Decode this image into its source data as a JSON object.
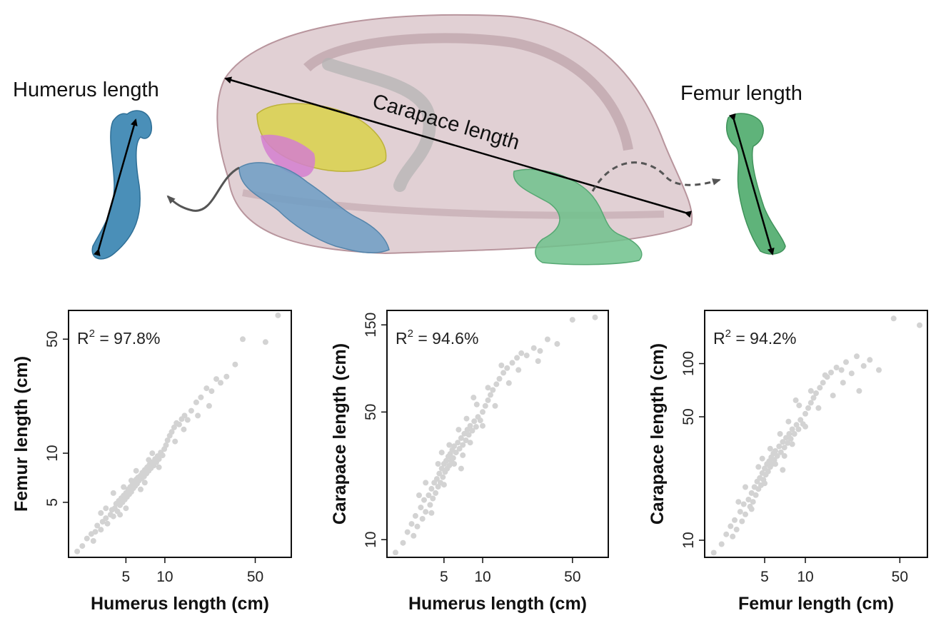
{
  "illustration": {
    "humerus_label": "Humerus length",
    "femur_label": "Femur length",
    "carapace_label": "Carapace length",
    "colors": {
      "carapace": "#c9a9b0",
      "skull": "#d9d24a",
      "forelimb": "#6d9ec4",
      "hindlimb": "#6fc28c",
      "muscle": "#d47fcf"
    }
  },
  "chart_data": [
    {
      "type": "scatter",
      "log_scale": true,
      "r2_prefix": "R",
      "r2_sup": "2",
      "r2_value": " = 97.8%",
      "xlabel": "Humerus length (cm)",
      "ylabel": "Femur length (cm)",
      "xticks": [
        5,
        10,
        50
      ],
      "yticks": [
        5,
        10,
        50
      ],
      "xlim": [
        1.8,
        95
      ],
      "ylim": [
        2.3,
        75
      ],
      "point_color": "#d3d3d3",
      "points": [
        [
          2.1,
          2.5
        ],
        [
          2.3,
          2.7
        ],
        [
          2.5,
          3.0
        ],
        [
          2.7,
          3.2
        ],
        [
          2.9,
          3.3
        ],
        [
          3.0,
          3.6
        ],
        [
          3.2,
          3.4
        ],
        [
          3.3,
          3.8
        ],
        [
          3.5,
          4.0
        ],
        [
          3.6,
          3.7
        ],
        [
          3.8,
          4.2
        ],
        [
          3.9,
          4.5
        ],
        [
          4.0,
          4.1
        ],
        [
          4.1,
          4.6
        ],
        [
          4.2,
          4.9
        ],
        [
          4.3,
          4.4
        ],
        [
          4.4,
          5.1
        ],
        [
          4.5,
          4.8
        ],
        [
          4.6,
          5.3
        ],
        [
          4.7,
          5.0
        ],
        [
          4.8,
          5.5
        ],
        [
          4.9,
          5.2
        ],
        [
          5.0,
          5.7
        ],
        [
          5.1,
          5.4
        ],
        [
          5.2,
          6.0
        ],
        [
          5.3,
          5.6
        ],
        [
          5.4,
          6.2
        ],
        [
          5.5,
          5.8
        ],
        [
          5.6,
          6.4
        ],
        [
          5.7,
          6.1
        ],
        [
          5.8,
          6.6
        ],
        [
          5.9,
          6.3
        ],
        [
          6.0,
          6.9
        ],
        [
          6.1,
          6.5
        ],
        [
          6.2,
          7.1
        ],
        [
          6.3,
          6.8
        ],
        [
          6.5,
          7.3
        ],
        [
          6.6,
          7.0
        ],
        [
          6.7,
          7.6
        ],
        [
          6.9,
          7.2
        ],
        [
          7.0,
          7.9
        ],
        [
          7.2,
          7.5
        ],
        [
          7.3,
          8.2
        ],
        [
          7.5,
          7.8
        ],
        [
          7.6,
          8.5
        ],
        [
          7.8,
          8.1
        ],
        [
          8.0,
          8.8
        ],
        [
          8.2,
          8.4
        ],
        [
          8.4,
          9.2
        ],
        [
          8.6,
          8.8
        ],
        [
          8.8,
          9.6
        ],
        [
          9.0,
          9.2
        ],
        [
          9.3,
          10.1
        ],
        [
          9.6,
          9.7
        ],
        [
          9.9,
          10.6
        ],
        [
          10.2,
          11.2
        ],
        [
          10.5,
          12.0
        ],
        [
          10.9,
          12.8
        ],
        [
          11.3,
          13.5
        ],
        [
          11.8,
          14.4
        ],
        [
          12.3,
          15.3
        ],
        [
          12.9,
          15.0
        ],
        [
          13.5,
          16.2
        ],
        [
          14.2,
          17.0
        ],
        [
          15.0,
          16.0
        ],
        [
          16.0,
          18.2
        ],
        [
          17.5,
          20.5
        ],
        [
          19.0,
          22.0
        ],
        [
          21.0,
          25.0
        ],
        [
          23.0,
          24.0
        ],
        [
          25.0,
          28.5
        ],
        [
          27.0,
          27.0
        ],
        [
          30.0,
          29.5
        ],
        [
          35.0,
          35.0
        ],
        [
          40.0,
          50.0
        ],
        [
          60.0,
          48.0
        ],
        [
          75.0,
          70.0
        ],
        [
          4.0,
          5.7
        ],
        [
          5.0,
          4.6
        ],
        [
          6.0,
          7.8
        ],
        [
          7.0,
          6.6
        ],
        [
          8.0,
          10.0
        ],
        [
          9.0,
          8.2
        ],
        [
          3.5,
          4.6
        ],
        [
          4.5,
          4.2
        ],
        [
          5.5,
          6.8
        ],
        [
          6.5,
          6.0
        ],
        [
          7.5,
          9.1
        ],
        [
          12.0,
          11.8
        ],
        [
          14.0,
          14.0
        ],
        [
          18.0,
          17.0
        ],
        [
          4.8,
          6.2
        ],
        [
          3.2,
          4.3
        ],
        [
          2.8,
          2.9
        ],
        [
          22.0,
          19.5
        ]
      ]
    },
    {
      "type": "scatter",
      "log_scale": true,
      "r2_prefix": "R",
      "r2_sup": "2",
      "r2_value": " = 94.6%",
      "xlabel": "Humerus length (cm)",
      "ylabel": "Carapace length (cm)",
      "xticks": [
        5,
        10,
        50
      ],
      "yticks": [
        10,
        50,
        150
      ],
      "xlim": [
        1.8,
        95
      ],
      "ylim": [
        8,
        180
      ],
      "point_color": "#d3d3d3",
      "points": [
        [
          2.1,
          8.5
        ],
        [
          2.4,
          9.6
        ],
        [
          2.6,
          11.0
        ],
        [
          2.8,
          12.2
        ],
        [
          3.0,
          13.5
        ],
        [
          3.1,
          11.8
        ],
        [
          3.3,
          15.0
        ],
        [
          3.4,
          13.0
        ],
        [
          3.5,
          16.5
        ],
        [
          3.6,
          14.2
        ],
        [
          3.8,
          17.5
        ],
        [
          3.9,
          15.5
        ],
        [
          4.0,
          19.0
        ],
        [
          4.1,
          16.8
        ],
        [
          4.2,
          20.5
        ],
        [
          4.3,
          18.0
        ],
        [
          4.4,
          21.5
        ],
        [
          4.5,
          19.5
        ],
        [
          4.6,
          23.0
        ],
        [
          4.7,
          20.5
        ],
        [
          4.8,
          24.5
        ],
        [
          4.9,
          22.0
        ],
        [
          5.0,
          26.0
        ],
        [
          5.1,
          23.5
        ],
        [
          5.2,
          27.0
        ],
        [
          5.3,
          24.5
        ],
        [
          5.4,
          28.5
        ],
        [
          5.5,
          25.5
        ],
        [
          5.6,
          29.5
        ],
        [
          5.7,
          27.0
        ],
        [
          5.8,
          31.0
        ],
        [
          5.9,
          28.0
        ],
        [
          6.0,
          32.5
        ],
        [
          6.2,
          30.0
        ],
        [
          6.4,
          34.0
        ],
        [
          6.6,
          31.5
        ],
        [
          6.8,
          36.0
        ],
        [
          7.0,
          33.0
        ],
        [
          7.2,
          38.0
        ],
        [
          7.4,
          35.0
        ],
        [
          7.6,
          40.0
        ],
        [
          7.8,
          37.5
        ],
        [
          8.0,
          42.0
        ],
        [
          8.3,
          39.5
        ],
        [
          8.6,
          44.5
        ],
        [
          8.9,
          41.5
        ],
        [
          9.2,
          47.0
        ],
        [
          9.6,
          45.0
        ],
        [
          10.0,
          50.0
        ],
        [
          10.5,
          54.0
        ],
        [
          11.0,
          58.0
        ],
        [
          11.5,
          62.0
        ],
        [
          12.0,
          66.0
        ],
        [
          12.8,
          71.0
        ],
        [
          13.5,
          76.0
        ],
        [
          14.5,
          82.0
        ],
        [
          15.5,
          87.0
        ],
        [
          17.0,
          93.0
        ],
        [
          18.5,
          99.0
        ],
        [
          20.0,
          105.0
        ],
        [
          22.0,
          102.0
        ],
        [
          25.0,
          112.0
        ],
        [
          28.0,
          108.0
        ],
        [
          32.0,
          125.0
        ],
        [
          38.0,
          118.0
        ],
        [
          50.0,
          160.0
        ],
        [
          75.0,
          165.0
        ],
        [
          3.2,
          17.5
        ],
        [
          4.0,
          14.0
        ],
        [
          4.5,
          26.0
        ],
        [
          5.0,
          20.0
        ],
        [
          5.5,
          33.0
        ],
        [
          6.0,
          26.0
        ],
        [
          6.5,
          40.0
        ],
        [
          7.0,
          29.0
        ],
        [
          7.5,
          46.0
        ],
        [
          8.0,
          34.0
        ],
        [
          9.0,
          55.0
        ],
        [
          10.0,
          42.0
        ],
        [
          11.0,
          68.0
        ],
        [
          12.5,
          54.0
        ],
        [
          14.0,
          90.0
        ],
        [
          16.0,
          72.0
        ],
        [
          3.6,
          20.5
        ],
        [
          4.8,
          30.0
        ],
        [
          6.8,
          24.5
        ],
        [
          2.9,
          10.5
        ],
        [
          8.5,
          60.0
        ],
        [
          19.0,
          85.0
        ],
        [
          27.0,
          95.0
        ]
      ]
    },
    {
      "type": "scatter",
      "log_scale": true,
      "r2_prefix": "R",
      "r2_sup": "2",
      "r2_value": " = 94.2%",
      "xlabel": "Femur length (cm)",
      "ylabel": "Carapace length (cm)",
      "xticks": [
        5,
        10,
        50
      ],
      "yticks": [
        10,
        50,
        100
      ],
      "xlim": [
        1.8,
        80
      ],
      "ylim": [
        8,
        200
      ],
      "point_color": "#d3d3d3",
      "points": [
        [
          2.1,
          8.5
        ],
        [
          2.4,
          9.5
        ],
        [
          2.6,
          10.8
        ],
        [
          2.8,
          12.0
        ],
        [
          3.0,
          13.0
        ],
        [
          3.1,
          11.5
        ],
        [
          3.3,
          14.5
        ],
        [
          3.4,
          12.8
        ],
        [
          3.5,
          16.0
        ],
        [
          3.6,
          14.0
        ],
        [
          3.8,
          17.0
        ],
        [
          3.9,
          15.5
        ],
        [
          4.0,
          18.5
        ],
        [
          4.1,
          16.5
        ],
        [
          4.2,
          20.0
        ],
        [
          4.3,
          18.0
        ],
        [
          4.4,
          21.5
        ],
        [
          4.5,
          19.5
        ],
        [
          4.6,
          22.5
        ],
        [
          4.7,
          20.5
        ],
        [
          4.8,
          24.0
        ],
        [
          4.9,
          22.0
        ],
        [
          5.0,
          25.5
        ],
        [
          5.1,
          23.5
        ],
        [
          5.2,
          27.0
        ],
        [
          5.3,
          24.5
        ],
        [
          5.4,
          28.0
        ],
        [
          5.5,
          26.0
        ],
        [
          5.6,
          29.5
        ],
        [
          5.7,
          27.0
        ],
        [
          5.8,
          31.0
        ],
        [
          5.9,
          28.5
        ],
        [
          6.0,
          32.0
        ],
        [
          6.2,
          30.0
        ],
        [
          6.4,
          34.0
        ],
        [
          6.6,
          31.5
        ],
        [
          6.8,
          36.0
        ],
        [
          7.0,
          33.5
        ],
        [
          7.2,
          38.0
        ],
        [
          7.4,
          35.5
        ],
        [
          7.6,
          40.0
        ],
        [
          7.8,
          37.5
        ],
        [
          8.0,
          42.5
        ],
        [
          8.3,
          40.0
        ],
        [
          8.6,
          45.0
        ],
        [
          8.9,
          42.5
        ],
        [
          9.2,
          48.0
        ],
        [
          9.6,
          45.5
        ],
        [
          10.0,
          52.0
        ],
        [
          10.5,
          56.0
        ],
        [
          11.0,
          60.0
        ],
        [
          11.5,
          64.0
        ],
        [
          12.0,
          68.0
        ],
        [
          12.8,
          73.0
        ],
        [
          13.5,
          78.0
        ],
        [
          14.5,
          84.0
        ],
        [
          15.5,
          89.0
        ],
        [
          17.0,
          95.0
        ],
        [
          18.5,
          92.0
        ],
        [
          20.0,
          102.0
        ],
        [
          22.0,
          88.0
        ],
        [
          24.0,
          110.0
        ],
        [
          27.0,
          97.0
        ],
        [
          30.0,
          105.0
        ],
        [
          35.0,
          92.0
        ],
        [
          45.0,
          180.0
        ],
        [
          70.0,
          165.0
        ],
        [
          3.2,
          16.5
        ],
        [
          4.0,
          15.0
        ],
        [
          4.5,
          26.0
        ],
        [
          5.0,
          21.0
        ],
        [
          5.5,
          33.0
        ],
        [
          6.0,
          27.0
        ],
        [
          6.5,
          40.0
        ],
        [
          7.0,
          30.0
        ],
        [
          7.5,
          47.0
        ],
        [
          8.0,
          35.0
        ],
        [
          9.0,
          58.0
        ],
        [
          10.0,
          44.0
        ],
        [
          11.0,
          70.0
        ],
        [
          12.5,
          56.0
        ],
        [
          14.0,
          86.0
        ],
        [
          16.0,
          66.0
        ],
        [
          3.6,
          20.0
        ],
        [
          4.8,
          29.0
        ],
        [
          6.8,
          25.0
        ],
        [
          2.9,
          10.5
        ],
        [
          8.5,
          62.0
        ],
        [
          19.0,
          78.0
        ],
        [
          25.0,
          70.0
        ]
      ]
    }
  ]
}
